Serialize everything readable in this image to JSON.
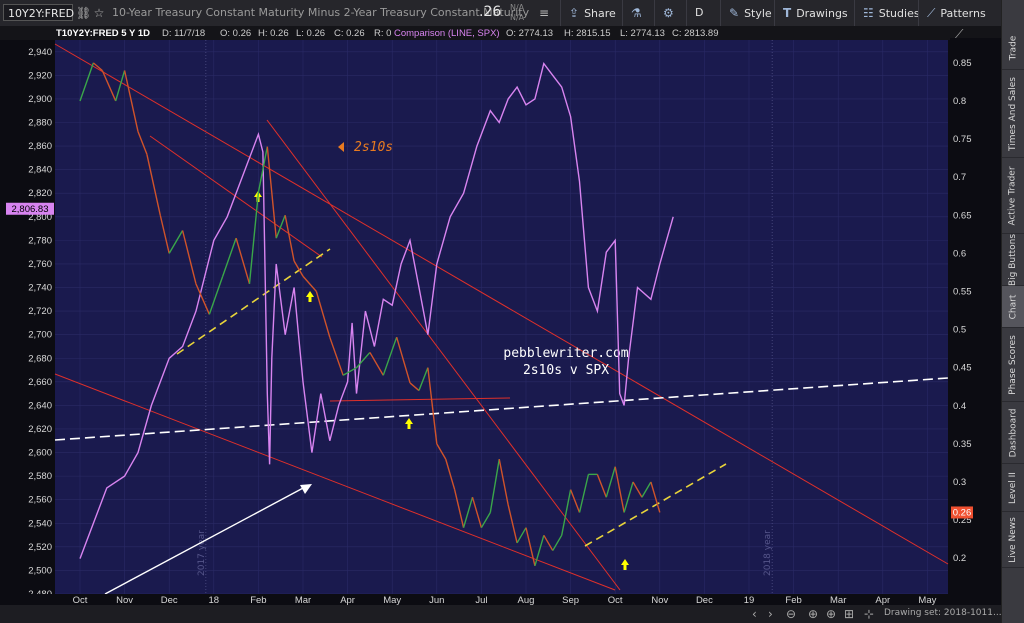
{
  "toolbar": {
    "symbol": "10Y2Y:FRED",
    "description": "10-Year Treasury Constant Maturity Minus 2-Year Treasury Constant Maturity",
    "last": ".26",
    "na1": "N/A",
    "na2": "N/A",
    "share": "Share",
    "aggregation": "D",
    "style": "Style",
    "drawings": "Drawings",
    "studies": "Studies",
    "patterns": "Patterns"
  },
  "header": {
    "title": "T10Y2Y:FRED 5 Y 1D",
    "d": "D: 11/7/18",
    "o": "O: 0.26",
    "h": "H: 0.26",
    "l": "L: 0.26",
    "c": "C: 0.26",
    "r": "R: 0",
    "comparison": "Comparison (LINE, SPX)",
    "co": "O: 2774.13",
    "ch": "H: 2815.15",
    "cl": "L: 2774.13",
    "cc": "C: 2813.89"
  },
  "colors": {
    "background": "#1a1a4e",
    "spx_line": "#d884f0",
    "trendline": "#e0302a",
    "arrow": "#ffff00",
    "channel": "#e8d43a",
    "price_up": "#3aa64a",
    "price_down": "#d0532a"
  },
  "annotations": {
    "series_label": "2s10s",
    "watermark1": "pebblewriter.com",
    "watermark2": "2s10s v SPX",
    "year_2017": "2017 year",
    "year_2018": "2018 year"
  },
  "chart_data": {
    "type": "line",
    "title": "2s10s v SPX",
    "x_ticks": [
      "Oct",
      "Nov",
      "Dec",
      "18",
      "Feb",
      "Mar",
      "Apr",
      "May",
      "Jun",
      "Jul",
      "Aug",
      "Sep",
      "Oct",
      "Nov",
      "Dec",
      "19",
      "Feb",
      "Mar",
      "Apr",
      "May"
    ],
    "left_axis": {
      "ticks": [
        2480,
        2500,
        2520,
        2540,
        2560,
        2580,
        2600,
        2620,
        2640,
        2660,
        2680,
        2700,
        2720,
        2740,
        2760,
        2780,
        2800,
        2820,
        2840,
        2860,
        2880,
        2900,
        2920,
        2940
      ],
      "tick_labels": [
        "2,480",
        "2,500",
        "2,520",
        "2,540",
        "2,560",
        "2,580",
        "2,600",
        "2,620",
        "2,640",
        "2,660",
        "2,680",
        "2,700",
        "2,720",
        "2,740",
        "2,760",
        "2,780",
        "2,800",
        "2,820",
        "2,840",
        "2,860",
        "2,880",
        "2,900",
        "2,920",
        "2,940"
      ],
      "range": [
        2480,
        2950
      ],
      "current": "2,806.83"
    },
    "right_axis": {
      "ticks": [
        0.2,
        0.25,
        0.3,
        0.35,
        0.4,
        0.45,
        0.5,
        0.55,
        0.6,
        0.65,
        0.7,
        0.75,
        0.8,
        0.85
      ],
      "tick_labels": [
        "0.2",
        "0.25",
        "0.3",
        "0.35",
        "0.4",
        "0.45",
        "0.5",
        "0.55",
        "0.6",
        "0.65",
        "0.7",
        "0.75",
        "0.8",
        "0.85"
      ],
      "range": [
        0.153,
        0.88
      ],
      "current": "0.26"
    },
    "series": [
      {
        "name": "SPX",
        "axis": "left",
        "x": [
          0.0,
          0.3,
          0.6,
          1.0,
          1.3,
          1.6,
          2.0,
          2.3,
          2.6,
          3.0,
          3.3,
          3.6,
          4.0,
          4.1,
          4.2,
          4.25,
          4.3,
          4.4,
          4.6,
          4.8,
          4.9,
          5.0,
          5.2,
          5.4,
          5.6,
          5.8,
          6.0,
          6.1,
          6.2,
          6.4,
          6.6,
          6.8,
          7.0,
          7.2,
          7.4,
          7.6,
          7.8,
          8.0,
          8.3,
          8.6,
          8.9,
          9.2,
          9.4,
          9.6,
          9.8,
          10.0,
          10.2,
          10.4,
          10.6,
          10.8,
          11.0,
          11.2,
          11.4,
          11.6,
          11.8,
          12.0,
          12.1,
          12.2,
          12.3,
          12.5,
          12.8,
          13.0,
          13.3
        ],
        "values": [
          2510,
          2540,
          2570,
          2580,
          2600,
          2640,
          2680,
          2690,
          2720,
          2780,
          2800,
          2830,
          2870,
          2855,
          2650,
          2590,
          2680,
          2760,
          2700,
          2740,
          2700,
          2660,
          2600,
          2650,
          2610,
          2640,
          2660,
          2710,
          2650,
          2720,
          2690,
          2730,
          2725,
          2760,
          2780,
          2740,
          2700,
          2760,
          2800,
          2820,
          2860,
          2890,
          2880,
          2900,
          2910,
          2895,
          2900,
          2930,
          2920,
          2910,
          2885,
          2830,
          2740,
          2720,
          2770,
          2780,
          2650,
          2640,
          2680,
          2740,
          2730,
          2760,
          2800
        ]
      },
      {
        "name": "2s10s",
        "axis": "right",
        "x": [
          0.0,
          0.3,
          0.5,
          0.8,
          1.0,
          1.3,
          1.5,
          1.8,
          2.0,
          2.3,
          2.6,
          2.9,
          3.2,
          3.5,
          3.8,
          4.0,
          4.2,
          4.4,
          4.6,
          4.8,
          5.0,
          5.3,
          5.6,
          5.9,
          6.2,
          6.5,
          6.8,
          7.1,
          7.4,
          7.6,
          7.8,
          8.0,
          8.2,
          8.4,
          8.6,
          8.8,
          9.0,
          9.2,
          9.4,
          9.6,
          9.8,
          10.0,
          10.2,
          10.4,
          10.6,
          10.8,
          11.0,
          11.2,
          11.4,
          11.6,
          11.8,
          12.0,
          12.2,
          12.4,
          12.6,
          12.8,
          13.0
        ],
        "values": [
          0.8,
          0.85,
          0.84,
          0.8,
          0.84,
          0.76,
          0.73,
          0.65,
          0.6,
          0.63,
          0.56,
          0.52,
          0.57,
          0.62,
          0.56,
          0.68,
          0.74,
          0.62,
          0.65,
          0.59,
          0.57,
          0.55,
          0.49,
          0.44,
          0.45,
          0.47,
          0.44,
          0.49,
          0.43,
          0.42,
          0.45,
          0.35,
          0.33,
          0.29,
          0.24,
          0.28,
          0.24,
          0.26,
          0.33,
          0.27,
          0.22,
          0.24,
          0.19,
          0.23,
          0.21,
          0.23,
          0.29,
          0.26,
          0.31,
          0.31,
          0.28,
          0.32,
          0.26,
          0.3,
          0.28,
          0.3,
          0.26
        ]
      }
    ]
  },
  "sidebar": {
    "tabs": [
      "Trade",
      "Times And Sales",
      "Active Trader",
      "Big Buttons",
      "Chart",
      "Phase Scores",
      "Dashboard",
      "Level II",
      "Live News"
    ]
  },
  "footer": {
    "drawing_set": "Drawing set: 2018-1011..."
  }
}
